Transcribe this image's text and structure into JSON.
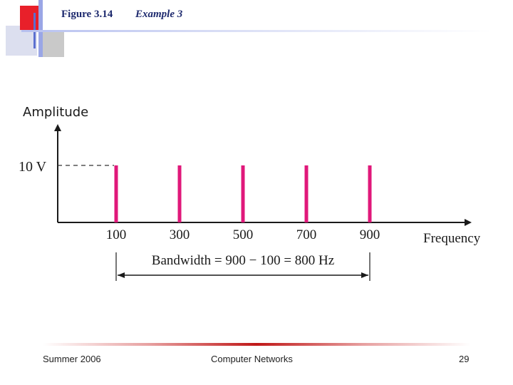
{
  "slide": {
    "figure_label": "Figure 3.14",
    "figure_title": "Example 3"
  },
  "footer": {
    "left": "Summer 2006",
    "center": "Computer Networks",
    "right": "29"
  },
  "chart_data": {
    "type": "bar",
    "ylabel": "Amplitude",
    "xlabel": "Frequency",
    "categories": [
      "100",
      "300",
      "500",
      "700",
      "900"
    ],
    "x": [
      100,
      300,
      500,
      700,
      900
    ],
    "values": [
      10,
      10,
      10,
      10,
      10
    ],
    "reference_label": "10 V",
    "bandwidth_label": "Bandwidth = 900 − 100 = 800 Hz",
    "grid": false,
    "colors": {
      "bar": "#e0187a",
      "axis": "#1a1a1a"
    }
  }
}
